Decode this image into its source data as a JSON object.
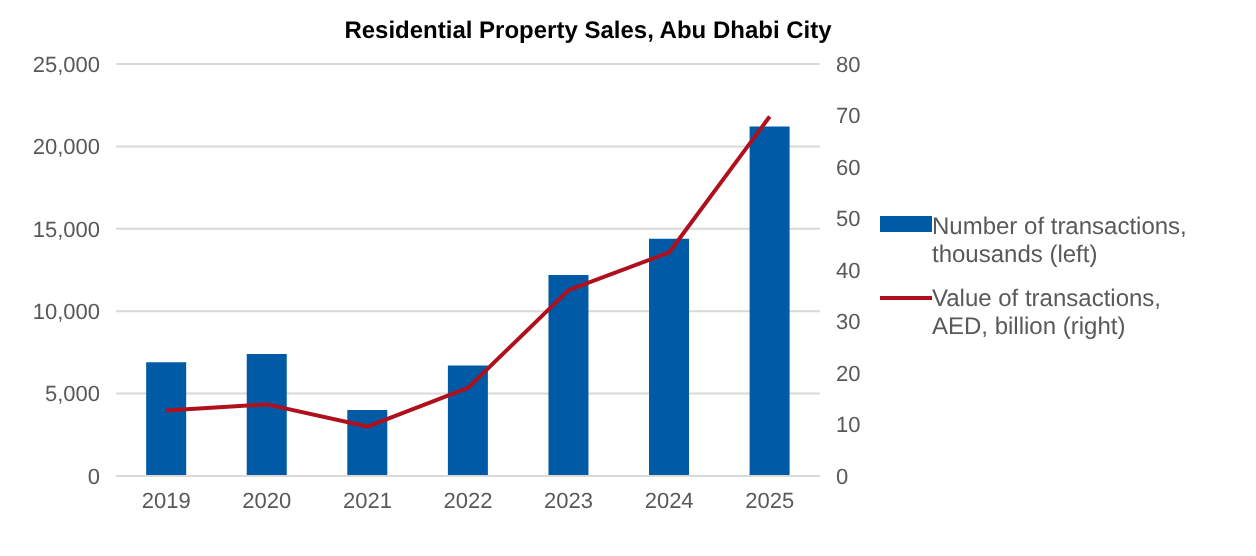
{
  "chart_data": {
    "type": "bar",
    "title": "Residential Property Sales, Abu Dhabi City",
    "categories": [
      "2019",
      "2020",
      "2021",
      "2022",
      "2023",
      "2024",
      "2025"
    ],
    "series": [
      {
        "name": "Number of transactions, thousands (left)",
        "color": "#005aa5",
        "values": [
          6900,
          7400,
          4000,
          6700,
          12200,
          14400,
          21200
        ]
      },
      {
        "name": "Value of transactions, AED, billion (right)",
        "type": "line",
        "axis": "y2",
        "color": "#b0101c",
        "values": [
          12.7,
          13.9,
          9.6,
          17.1,
          36.1,
          43.4,
          69.8
        ]
      }
    ],
    "ylim": [
      0,
      25000
    ],
    "yticks": [
      {
        "value": 0,
        "label": "0"
      },
      {
        "value": 5000,
        "label": "5,000"
      },
      {
        "value": 10000,
        "label": "10,000"
      },
      {
        "value": 15000,
        "label": "15,000"
      },
      {
        "value": 20000,
        "label": "20,000"
      },
      {
        "value": 25000,
        "label": "25,000"
      }
    ],
    "y2lim": [
      0,
      80
    ],
    "y2ticks": [
      0,
      10,
      20,
      30,
      40,
      50,
      60,
      70,
      80
    ],
    "grid": "y",
    "legend": "right",
    "marker": "none"
  }
}
